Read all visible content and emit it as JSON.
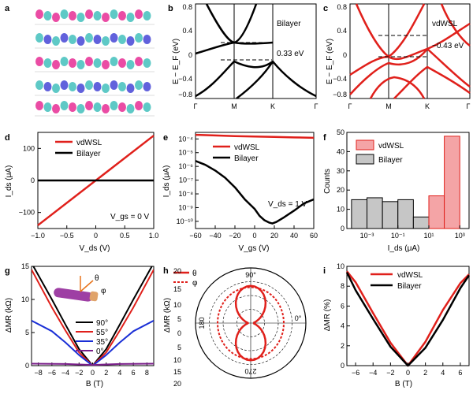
{
  "panels": {
    "a": {
      "label": "a"
    },
    "b": {
      "label": "b",
      "ylabel": "E − E_F (eV)",
      "title_text": "Bilayer",
      "annotation": "0.33 eV",
      "xticks": [
        "Γ",
        "M",
        "K",
        "Γ"
      ],
      "yticks": [
        "0.8",
        "0.4",
        "0",
        "−0.4",
        "−0.8"
      ]
    },
    "c": {
      "label": "c",
      "ylabel": "E − E_F (eV)",
      "title_text": "vdWSL",
      "annotation": "−0.43 eV",
      "xticks": [
        "Γ",
        "M",
        "K",
        "Γ"
      ],
      "yticks": [
        "0.8",
        "0.4",
        "0",
        "−0.4",
        "−0.8"
      ]
    },
    "d": {
      "label": "d",
      "xlabel": "V_ds (V)",
      "ylabel": "I_ds (μA)",
      "legend": [
        "vdWSL",
        "Bilayer"
      ],
      "annotation": "V_gs = 0 V",
      "xticks": [
        "−1.0",
        "−0.5",
        "0",
        "0.5",
        "1.0"
      ],
      "yticks": [
        "100",
        "0",
        "−100"
      ]
    },
    "e": {
      "label": "e",
      "xlabel": "V_gs (V)",
      "ylabel": "I_ds (μA)",
      "legend": [
        "vdWSL",
        "Bilayer"
      ],
      "annotation": "V_ds = 1 V",
      "xticks": [
        "−60",
        "−40",
        "−20",
        "0",
        "20",
        "40",
        "60"
      ],
      "yticks": [
        "10⁻⁴",
        "10⁻⁵",
        "10⁻⁶",
        "10⁻⁷",
        "10⁻⁸",
        "10⁻⁹",
        "10⁻¹⁰"
      ]
    },
    "f": {
      "label": "f",
      "xlabel": "I_ds (μA)",
      "ylabel": "Counts",
      "legend": [
        "vdWSL",
        "Bilayer"
      ],
      "xticks": [
        "10⁻³",
        "10⁻¹",
        "10¹",
        "10³"
      ],
      "yticks": [
        "0",
        "10",
        "20",
        "30",
        "40",
        "50"
      ]
    },
    "g": {
      "label": "g",
      "xlabel": "B (T)",
      "ylabel": "ΔMR (kΩ)",
      "legend": [
        "90°",
        "55°",
        "35°",
        "0°"
      ],
      "inset_labels": [
        "θ",
        "φ"
      ],
      "xticks": [
        "−8",
        "−6",
        "−4",
        "−2",
        "0",
        "2",
        "4",
        "6",
        "8"
      ],
      "yticks": [
        "0",
        "5",
        "10",
        "15"
      ]
    },
    "h": {
      "label": "h",
      "ylabel": "ΔMR (kΩ)",
      "legend": [
        "θ",
        "φ"
      ],
      "angle_labels": [
        "90°",
        "0°",
        "180",
        "270"
      ],
      "rticks": [
        "20",
        "15",
        "10",
        "5",
        "0",
        "5",
        "10",
        "15",
        "20"
      ]
    },
    "i": {
      "label": "i",
      "xlabel": "B (T)",
      "ylabel": "ΔMR (%)",
      "legend": [
        "vdWSL",
        "Bilayer"
      ],
      "xticks": [
        "−6",
        "−4",
        "−2",
        "0",
        "2",
        "4",
        "6"
      ],
      "yticks": [
        "0",
        "2",
        "4",
        "6",
        "8",
        "10"
      ]
    }
  },
  "colors": {
    "vdwsl": "#e0201b",
    "bilayer": "#000000",
    "bar_vdwsl": "#f4a4a6",
    "bar_bilayer": "#c6c6c6",
    "angle35": "#1a2fd6",
    "angle0": "#7a1f8a",
    "orbital_pink": "#e8399a",
    "orbital_cyan": "#4cc3c0",
    "orbital_blue": "#5050d8"
  },
  "chart_data": [
    {
      "panel": "d",
      "type": "line",
      "xlim": [
        -1,
        1
      ],
      "ylim": [
        -150,
        150
      ],
      "series": [
        {
          "name": "vdWSL",
          "x": [
            -1,
            1
          ],
          "y": [
            -140,
            140
          ]
        },
        {
          "name": "Bilayer",
          "x": [
            -1,
            1
          ],
          "y": [
            0,
            0
          ]
        }
      ]
    },
    {
      "panel": "e",
      "type": "line",
      "yscale": "log",
      "xlim": [
        -60,
        60
      ],
      "ylim": [
        3e-11,
        0.0003
      ],
      "series": [
        {
          "name": "vdWSL",
          "x": [
            -60,
            -40,
            -20,
            0,
            20,
            40,
            60
          ],
          "y": [
            0.0002,
            0.00018,
            0.00016,
            0.00015,
            0.00014,
            0.00013,
            0.00012
          ]
        },
        {
          "name": "Bilayer",
          "x": [
            -60,
            -50,
            -40,
            -30,
            -20,
            -10,
            0,
            5,
            10,
            15,
            18,
            22,
            30,
            40,
            50,
            60
          ],
          "y": [
            2.5e-06,
            1.3e-06,
            5e-07,
            1.5e-07,
            3e-08,
            4e-09,
            8e-10,
            2.5e-10,
            1.2e-10,
            8e-11,
            7e-11,
            9e-11,
            2e-10,
            6e-10,
            2e-09,
            4e-09
          ]
        }
      ]
    },
    {
      "panel": "f",
      "type": "bar",
      "bin_edges_log10": [
        -4,
        -3,
        -2,
        -1,
        0,
        1,
        2,
        3
      ],
      "series": [
        {
          "name": "Bilayer",
          "values": [
            15,
            16,
            14,
            15,
            6,
            null,
            null
          ]
        },
        {
          "name": "vdWSL",
          "values": [
            null,
            null,
            null,
            null,
            null,
            17,
            48
          ]
        }
      ],
      "ylim": [
        0,
        50
      ]
    },
    {
      "panel": "g",
      "type": "line",
      "xlim": [
        -9,
        9
      ],
      "ylim": [
        0,
        15
      ],
      "series": [
        {
          "name": "90°",
          "x": [
            -9,
            -6,
            -4,
            -2,
            0,
            2,
            4,
            6,
            9
          ],
          "y": [
            15.5,
            10,
            6.2,
            2.5,
            0,
            2.5,
            6.2,
            10,
            15.5
          ]
        },
        {
          "name": "55°",
          "x": [
            -9,
            -6,
            -4,
            -2,
            0,
            2,
            4,
            6,
            9
          ],
          "y": [
            14.5,
            8.8,
            5.3,
            2.0,
            0,
            2.0,
            5.3,
            8.8,
            14.5
          ]
        },
        {
          "name": "35°",
          "x": [
            -9,
            -6,
            -4,
            -2,
            0,
            2,
            4,
            6,
            9
          ],
          "y": [
            6.8,
            5.2,
            3.5,
            1.6,
            0,
            1.6,
            3.5,
            5.2,
            6.8
          ]
        },
        {
          "name": "0°",
          "x": [
            -9,
            -4,
            0,
            4,
            9
          ],
          "y": [
            0.3,
            0.25,
            0.1,
            0.25,
            0.3
          ]
        }
      ]
    },
    {
      "panel": "h",
      "type": "polar",
      "rlim": [
        0,
        20
      ],
      "series": [
        {
          "name": "θ",
          "description_angle_deg": [
            0,
            30,
            60,
            90,
            120,
            150,
            180,
            210,
            240,
            270,
            300,
            330
          ],
          "r": [
            1,
            4,
            10,
            13,
            10,
            4,
            1,
            4,
            10,
            13,
            10,
            4
          ]
        },
        {
          "name": "φ",
          "description_angle_deg": [
            0,
            90,
            180,
            270
          ],
          "r": [
            12,
            13,
            12,
            13
          ]
        }
      ]
    },
    {
      "panel": "i",
      "type": "line",
      "xlim": [
        -7,
        7
      ],
      "ylim": [
        0,
        10
      ],
      "series": [
        {
          "name": "vdWSL",
          "x": [
            -7,
            -6,
            -4,
            -2,
            0,
            2,
            4,
            6,
            7
          ],
          "y": [
            9.5,
            8.4,
            5.3,
            2.3,
            0,
            2.4,
            5.6,
            8.3,
            9.2
          ]
        },
        {
          "name": "Bilayer",
          "x": [
            -7,
            -6,
            -4,
            -2,
            0,
            2,
            4,
            6,
            7
          ],
          "y": [
            9.4,
            7.6,
            4.7,
            1.9,
            0,
            1.8,
            4.6,
            7.8,
            9.1
          ]
        }
      ]
    }
  ]
}
